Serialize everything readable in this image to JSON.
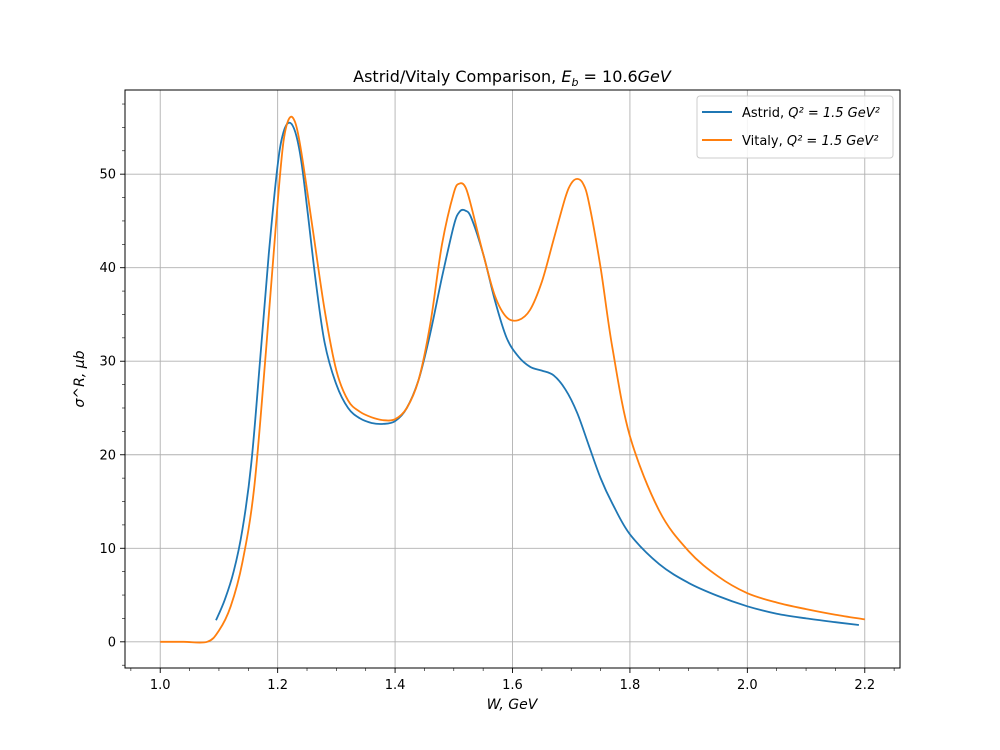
{
  "chart_data": {
    "type": "line",
    "title": "Astrid/Vitaly Comparison, E_b = 10.6GeV",
    "title_parts": {
      "prefix": "Astrid/Vitaly Comparison, ",
      "symbol": "E",
      "sub": "b",
      "suffix": " = 10.6",
      "unit": "GeV"
    },
    "xlabel": "W, GeV",
    "ylabel": "σ^R, μb",
    "xlim": [
      0.94,
      2.26
    ],
    "ylim": [
      -2.8,
      59
    ],
    "x_ticks": [
      1.0,
      1.2,
      1.4,
      1.6,
      1.8,
      2.0,
      2.2
    ],
    "x_tick_labels": [
      "1.0",
      "1.2",
      "1.4",
      "1.6",
      "1.8",
      "2.0",
      "2.2"
    ],
    "y_ticks": [
      0,
      10,
      20,
      30,
      40,
      50
    ],
    "y_tick_labels": [
      "0",
      "10",
      "20",
      "30",
      "40",
      "50"
    ],
    "grid": true,
    "legend_position": "top-right",
    "series": [
      {
        "name": "Astrid, Q^2 = 1.5 GeV^2",
        "legend_label": {
          "prefix": "Astrid, ",
          "math": "Q² = 1.5 GeV²"
        },
        "color": "#1f77b4",
        "x": [
          1.095,
          1.11,
          1.125,
          1.14,
          1.155,
          1.17,
          1.185,
          1.2,
          1.21,
          1.22,
          1.23,
          1.24,
          1.25,
          1.265,
          1.28,
          1.3,
          1.32,
          1.34,
          1.36,
          1.38,
          1.4,
          1.42,
          1.44,
          1.46,
          1.48,
          1.5,
          1.51,
          1.52,
          1.53,
          1.55,
          1.57,
          1.59,
          1.61,
          1.63,
          1.65,
          1.67,
          1.69,
          1.71,
          1.73,
          1.75,
          1.77,
          1.8,
          1.85,
          1.9,
          1.95,
          2.0,
          2.05,
          2.1,
          2.15,
          2.19
        ],
        "y": [
          2.3,
          4.5,
          7.5,
          12.0,
          19.0,
          30.0,
          41.5,
          51.0,
          54.5,
          55.5,
          54.5,
          51.5,
          46.5,
          38.5,
          32.0,
          27.5,
          25.0,
          23.9,
          23.4,
          23.3,
          23.6,
          25.0,
          28.0,
          33.0,
          39.0,
          44.5,
          46.0,
          46.1,
          45.3,
          41.5,
          36.5,
          32.5,
          30.5,
          29.4,
          29.0,
          28.5,
          27.0,
          24.5,
          21.0,
          17.5,
          14.8,
          11.5,
          8.3,
          6.3,
          4.9,
          3.8,
          3.0,
          2.5,
          2.1,
          1.8
        ]
      },
      {
        "name": "Vitaly, Q^2 = 1.5 GeV^2",
        "legend_label": {
          "prefix": "Vitaly, ",
          "math": "Q² = 1.5 GeV²"
        },
        "color": "#ff7f0e",
        "x": [
          1.0,
          1.04,
          1.08,
          1.1,
          1.12,
          1.14,
          1.16,
          1.18,
          1.2,
          1.21,
          1.22,
          1.23,
          1.24,
          1.26,
          1.28,
          1.3,
          1.32,
          1.34,
          1.36,
          1.38,
          1.4,
          1.42,
          1.44,
          1.46,
          1.48,
          1.5,
          1.51,
          1.52,
          1.53,
          1.55,
          1.57,
          1.59,
          1.61,
          1.63,
          1.65,
          1.67,
          1.69,
          1.7,
          1.71,
          1.72,
          1.73,
          1.75,
          1.77,
          1.8,
          1.85,
          1.9,
          1.95,
          2.0,
          2.05,
          2.1,
          2.15,
          2.2
        ],
        "y": [
          0.0,
          0.0,
          0.0,
          1.2,
          3.8,
          8.5,
          16.5,
          31.0,
          47.0,
          53.5,
          56.0,
          55.5,
          52.5,
          44.0,
          35.5,
          29.0,
          25.8,
          24.6,
          24.0,
          23.7,
          23.8,
          25.0,
          28.0,
          34.0,
          42.5,
          48.0,
          49.0,
          48.6,
          46.5,
          41.5,
          37.0,
          34.7,
          34.4,
          35.5,
          38.5,
          43.0,
          47.5,
          49.0,
          49.5,
          49.0,
          47.0,
          40.0,
          31.5,
          22.0,
          14.0,
          9.7,
          7.0,
          5.2,
          4.2,
          3.5,
          2.9,
          2.4
        ]
      }
    ]
  }
}
